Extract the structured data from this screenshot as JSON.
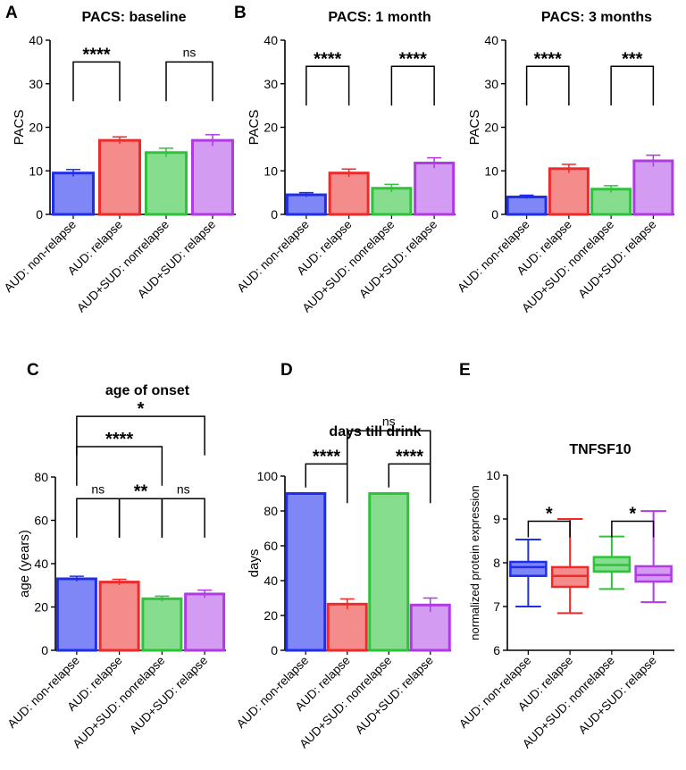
{
  "colors": {
    "blue": "#1f2ee8",
    "red": "#ee2b2b",
    "green": "#2fc23a",
    "purple": "#b03be3",
    "blue_fill": "#7f86f6",
    "red_fill": "#f58c8c",
    "green_fill": "#86dd8d",
    "purple_fill": "#d39bf1"
  },
  "chart_data": [
    {
      "panel": "A",
      "type": "bar",
      "title": "PACS: baseline",
      "ylabel": "PACS",
      "ylim": [
        0,
        40
      ],
      "yticks": [
        0,
        10,
        20,
        30,
        40
      ],
      "categories": [
        "AUD: non-relapse",
        "AUD: relapse",
        "AUD+SUD: nonrelapse",
        "AUD+SUD: relapse"
      ],
      "values": [
        9.5,
        17.0,
        14.2,
        17.0
      ],
      "errors": [
        0.8,
        0.8,
        1.0,
        1.3
      ],
      "comparisons": [
        {
          "from": 0,
          "to": 1,
          "y": 35,
          "label": "****"
        },
        {
          "from": 2,
          "to": 3,
          "y": 35,
          "label": "ns"
        }
      ]
    },
    {
      "panel": "B",
      "type": "bar",
      "title": "PACS: 1 month",
      "ylabel": "PACS",
      "ylim": [
        0,
        40
      ],
      "yticks": [
        0,
        10,
        20,
        30,
        40
      ],
      "categories": [
        "AUD: non-relapse",
        "AUD: relapse",
        "AUD+SUD: nonrelapse",
        "AUD+SUD: relapse"
      ],
      "values": [
        4.5,
        9.5,
        6.0,
        11.8
      ],
      "errors": [
        0.5,
        0.9,
        0.9,
        1.2
      ],
      "comparisons": [
        {
          "from": 0,
          "to": 1,
          "y": 34,
          "label": "****"
        },
        {
          "from": 2,
          "to": 3,
          "y": 34,
          "label": "****"
        }
      ]
    },
    {
      "panel": "",
      "type": "bar",
      "title": "PACS: 3 months",
      "ylabel": "PACS",
      "ylim": [
        0,
        40
      ],
      "yticks": [
        0,
        10,
        20,
        30,
        40
      ],
      "categories": [
        "AUD: non-relapse",
        "AUD: relapse",
        "AUD+SUD: nonrelapse",
        "AUD+SUD: relapse"
      ],
      "values": [
        4.0,
        10.5,
        5.8,
        12.3
      ],
      "errors": [
        0.4,
        1.0,
        0.8,
        1.3
      ],
      "comparisons": [
        {
          "from": 0,
          "to": 1,
          "y": 34,
          "label": "****"
        },
        {
          "from": 2,
          "to": 3,
          "y": 34,
          "label": "***"
        }
      ]
    },
    {
      "panel": "C",
      "type": "bar",
      "title": "age of onset",
      "ylabel": "age (years)",
      "ylim": [
        0,
        80
      ],
      "yticks": [
        0,
        20,
        40,
        60,
        80
      ],
      "categories": [
        "AUD: non-relapse",
        "AUD: relapse",
        "AUD+SUD: nonrelapse",
        "AUD+SUD: relapse"
      ],
      "values": [
        33.0,
        31.5,
        23.8,
        26.0
      ],
      "errors": [
        1.2,
        1.3,
        1.2,
        1.8
      ],
      "comparisons": [
        {
          "from": 0,
          "to": 3,
          "y": 108,
          "label": "*"
        },
        {
          "from": 0,
          "to": 2,
          "y": 94,
          "label": "****"
        },
        {
          "from": 0,
          "to": 1,
          "y": 70,
          "label": "ns"
        },
        {
          "from": 1,
          "to": 2,
          "y": 70,
          "label": "**"
        },
        {
          "from": 2,
          "to": 3,
          "y": 70,
          "label": "ns"
        }
      ]
    },
    {
      "panel": "D",
      "type": "bar",
      "title": "days till drink",
      "ylabel": "days",
      "ylim": [
        0,
        100
      ],
      "yticks": [
        0,
        20,
        40,
        60,
        80,
        100
      ],
      "categories": [
        "AUD: non-relapse",
        "AUD: relapse",
        "AUD+SUD: nonrelapse",
        "AUD+SUD: relapse"
      ],
      "values": [
        90.0,
        26.5,
        90.0,
        26.0
      ],
      "errors": [
        0.4,
        3.0,
        0.4,
        4.0
      ],
      "comparisons": [
        {
          "from": 0,
          "to": 1,
          "y": 107,
          "label": "****"
        },
        {
          "from": 2,
          "to": 3,
          "y": 107,
          "label": "****"
        },
        {
          "from": 1,
          "to": 3,
          "y": 126,
          "label": "ns"
        }
      ]
    },
    {
      "panel": "E",
      "type": "box",
      "title": "TNFSF10",
      "ylabel": "normalized protein expression",
      "ylim": [
        6,
        10
      ],
      "yticks": [
        6,
        7,
        8,
        9,
        10
      ],
      "categories": [
        "AUD: non-relapse",
        "AUD: relapse",
        "AUD+SUD: nonrelapse",
        "AUD+SUD: relapse"
      ],
      "boxes": [
        {
          "min": 7.0,
          "q1": 7.7,
          "median": 7.9,
          "q3": 8.02,
          "max": 8.53
        },
        {
          "min": 6.85,
          "q1": 7.45,
          "median": 7.7,
          "q3": 7.9,
          "max": 9.0
        },
        {
          "min": 7.4,
          "q1": 7.8,
          "median": 7.95,
          "q3": 8.13,
          "max": 8.6
        },
        {
          "min": 7.1,
          "q1": 7.57,
          "median": 7.72,
          "q3": 7.92,
          "max": 9.18
        }
      ],
      "comparisons": [
        {
          "from": 0,
          "to": 1,
          "y": 8.95,
          "label": "*"
        },
        {
          "from": 2,
          "to": 3,
          "y": 8.95,
          "label": "*"
        }
      ]
    }
  ]
}
